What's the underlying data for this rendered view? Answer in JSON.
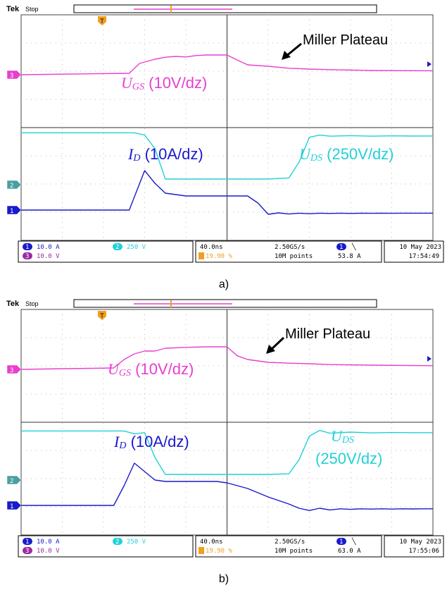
{
  "colors": {
    "ch1": "#1a1acc",
    "ch2": "#22d0d8",
    "ch3": "#e83fd0",
    "trigger": "#f0a020",
    "grid": "#bbbbbb"
  },
  "chart_data": [
    {
      "type": "line",
      "caption": "a)",
      "header": {
        "brand": "Tek",
        "status": "Stop"
      },
      "x_unit": "ns",
      "x_per_div": 40,
      "xlim": [
        -200,
        200
      ],
      "annotation": "Miller Plateau",
      "labels": {
        "ugs": {
          "symbol": "U",
          "sub": "GS",
          "scale": " (10V/dz)"
        },
        "id": {
          "symbol": "I",
          "sub": "D",
          "scale": " (10A/dz)"
        },
        "uds": {
          "symbol": "U",
          "sub": "DS",
          "scale": " (250V/dz)"
        }
      },
      "series": [
        {
          "channel": "1",
          "color": "#1a1acc",
          "x": [
            -200,
            -95,
            -80,
            -70,
            -60,
            -50,
            -40,
            -30,
            -20,
            -10,
            0,
            10,
            20,
            30,
            40,
            50,
            60,
            70,
            80,
            90,
            100,
            110,
            120,
            130,
            140,
            150,
            160,
            170,
            180,
            190,
            200
          ],
          "values": [
            0,
            0,
            14,
            9.5,
            6,
            5.5,
            5,
            5,
            5,
            5,
            5,
            5,
            5,
            2.5,
            -1.5,
            -1.0,
            -1.4,
            -1.1,
            -1.3,
            -1.1,
            -1.2,
            -1.1,
            -1.2,
            -1.1,
            -1.15,
            -1.1,
            -1.15,
            -1.1,
            -1.1,
            -1.1,
            -1.1
          ]
        },
        {
          "channel": "2",
          "color": "#22d0d8",
          "x": [
            -200,
            -90,
            -80,
            -70,
            -60,
            -40,
            -20,
            0,
            40,
            60,
            70,
            80,
            90,
            100,
            120,
            140,
            160,
            180,
            200
          ],
          "values": [
            460,
            460,
            440,
            320,
            50,
            50,
            50,
            50,
            50,
            60,
            200,
            420,
            440,
            430,
            435,
            430,
            433,
            431,
            432
          ]
        },
        {
          "channel": "3",
          "color": "#e83fd0",
          "x": [
            -200,
            -95,
            -85,
            -70,
            -60,
            -50,
            -40,
            -30,
            -20,
            -10,
            0,
            10,
            20,
            40,
            60,
            80,
            100,
            140,
            200
          ],
          "values": [
            0,
            0.5,
            4,
            5.5,
            6.2,
            6.5,
            6.3,
            6.8,
            7,
            7,
            7,
            5.2,
            3.5,
            3,
            2.3,
            2.0,
            1.8,
            1.5,
            1.4
          ]
        }
      ],
      "status": {
        "ch1_scale": "10.0 A",
        "ch2_scale": "250 V",
        "ch3_scale": "10.0 V",
        "timebase": "40.0ns",
        "trigger_pos": "19.90 %",
        "sample_rate": "2.50GS/s",
        "record": "10M points",
        "trigger_level": "53.8 A",
        "date": "10 May 2023",
        "time": "17:54:49"
      }
    },
    {
      "type": "line",
      "caption": "b)",
      "header": {
        "brand": "Tek",
        "status": "Stop"
      },
      "x_unit": "ns",
      "x_per_div": 40,
      "xlim": [
        -200,
        200
      ],
      "annotation": "Miller Plateau",
      "labels": {
        "ugs": {
          "symbol": "U",
          "sub": "GS",
          "scale": " (10V/dz)"
        },
        "id": {
          "symbol": "I",
          "sub": "D",
          "scale": " (10A/dz)"
        },
        "uds": {
          "symbol": "U",
          "sub": "DS",
          "scale": "(250V/dz)"
        }
      },
      "series": [
        {
          "channel": "1",
          "color": "#1a1acc",
          "x": [
            -200,
            -110,
            -100,
            -90,
            -80,
            -70,
            -60,
            -50,
            -40,
            -30,
            -20,
            -10,
            0,
            20,
            40,
            60,
            70,
            80,
            90,
            100,
            110,
            120,
            130,
            140,
            150,
            160,
            170,
            180,
            190,
            200
          ],
          "values": [
            0,
            0,
            7,
            15,
            12,
            9,
            8.5,
            8.5,
            8.5,
            8.5,
            8.5,
            8.5,
            8,
            6,
            3,
            0.5,
            -1.0,
            -1.8,
            -1.0,
            -1.6,
            -1.2,
            -1.4,
            -1.2,
            -1.3,
            -1.2,
            -1.3,
            -1.2,
            -1.25,
            -1.2,
            -1.2
          ]
        },
        {
          "channel": "2",
          "color": "#22d0d8",
          "x": [
            -200,
            -100,
            -90,
            -80,
            -70,
            -60,
            -40,
            -20,
            0,
            40,
            60,
            70,
            80,
            90,
            100,
            120,
            140,
            160,
            180,
            200
          ],
          "values": [
            435,
            435,
            410,
            420,
            200,
            50,
            50,
            50,
            50,
            50,
            55,
            180,
            390,
            440,
            415,
            425,
            418,
            421,
            420,
            420
          ]
        },
        {
          "channel": "3",
          "color": "#e83fd0",
          "x": [
            -200,
            -110,
            -100,
            -90,
            -80,
            -70,
            -60,
            -40,
            -20,
            0,
            10,
            20,
            40,
            60,
            80,
            100,
            140,
            200
          ],
          "values": [
            0,
            0.5,
            3.5,
            5.5,
            6.5,
            6.5,
            7.5,
            7.8,
            8,
            8,
            4.8,
            3.5,
            2.5,
            2.2,
            2.0,
            1.7,
            1.5,
            1.3
          ]
        }
      ],
      "status": {
        "ch1_scale": "10.0 A",
        "ch2_scale": "250 V",
        "ch3_scale": "10.0 V",
        "timebase": "40.0ns",
        "trigger_pos": "19.90 %",
        "sample_rate": "2.50GS/s",
        "record": "10M points",
        "trigger_level": "63.0 A",
        "date": "10 May 2023",
        "time": "17:55:06"
      }
    }
  ]
}
